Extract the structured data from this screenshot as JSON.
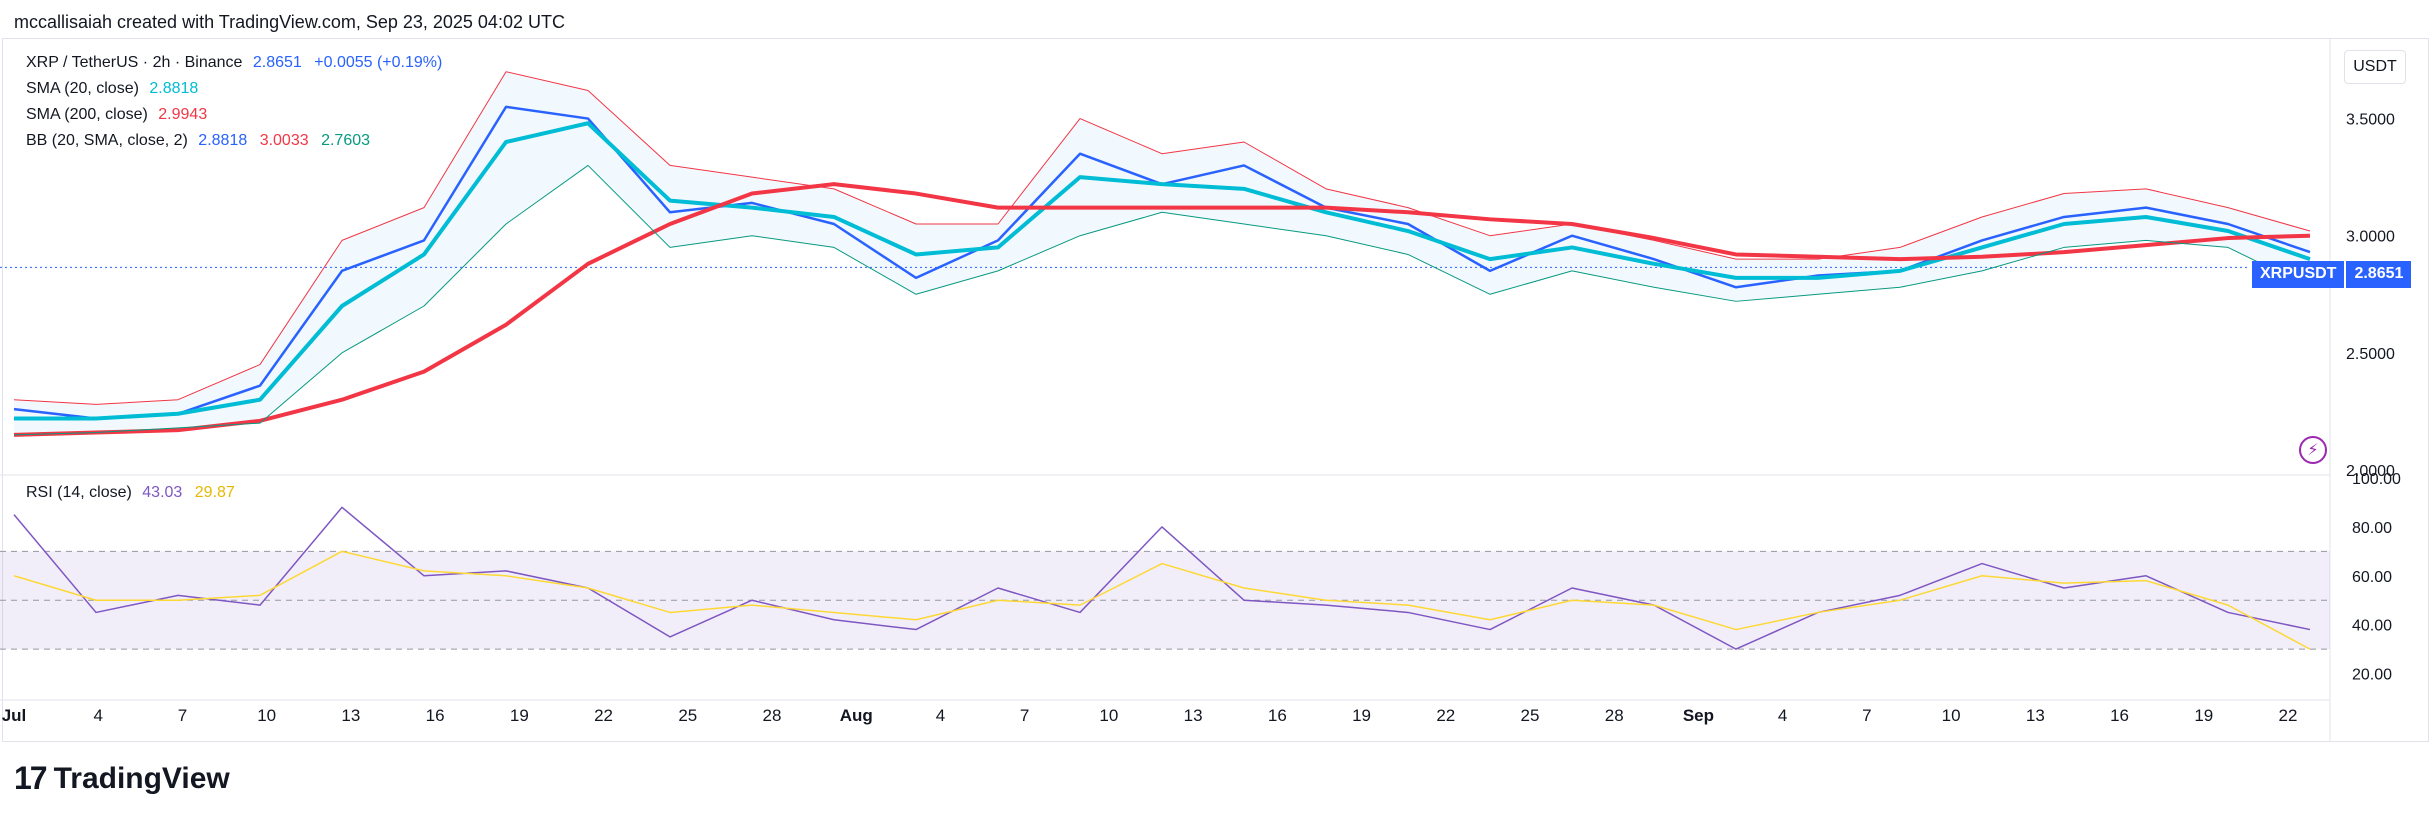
{
  "header": {
    "text": "mccallisaiah created with TradingView.com, Sep 23, 2025 04:02 UTC"
  },
  "legend": {
    "symbol": "XRP / TetherUS · 2h · Binance",
    "last": "2.8651",
    "change": "+0.0055 (+0.19%)",
    "sma20_label": "SMA (20, close)",
    "sma20_value": "2.8818",
    "sma200_label": "SMA (200, close)",
    "sma200_value": "2.9943",
    "bb_label": "BB (20, SMA, close, 2)",
    "bb_basis": "2.8818",
    "bb_upper": "3.0033",
    "bb_lower": "2.7603",
    "rsi_label": "RSI (14, close)",
    "rsi_value": "43.03",
    "rsi_ma": "29.87"
  },
  "currency_button": "USDT",
  "price_tag": {
    "symbol": "XRPUSDT",
    "value": "2.8651"
  },
  "footer": {
    "logo": "17",
    "brand": "TradingView"
  },
  "colors": {
    "price": "#2962ff",
    "sma20": "#00bcd4",
    "sma200": "#f23645",
    "bb_upper": "#f23645",
    "bb_lower": "#089981",
    "rsi": "#7e57c2",
    "rsi_ma": "#fdd835",
    "band": "#7e57c2"
  },
  "chart_data": {
    "type": "line",
    "x_tick_labels": [
      "Jul",
      "4",
      "7",
      "10",
      "13",
      "16",
      "19",
      "22",
      "25",
      "28",
      "Aug",
      "4",
      "7",
      "10",
      "13",
      "16",
      "19",
      "22",
      "25",
      "28",
      "Sep",
      "4",
      "7",
      "10",
      "13",
      "16",
      "19",
      "22"
    ],
    "price_axis": {
      "ticks": [
        "3.5000",
        "3.0000",
        "2.5000",
        "2.0000"
      ],
      "ylim": [
        2.0,
        3.75
      ]
    },
    "rsi_axis": {
      "ticks": [
        "100.00",
        "80.00",
        "60.00",
        "40.00",
        "20.00"
      ],
      "ylim": [
        10,
        100
      ],
      "band": [
        30,
        70
      ]
    },
    "x": [
      0,
      3,
      6,
      9,
      12,
      15,
      18,
      21,
      24,
      27,
      30,
      33,
      36,
      39,
      42,
      45,
      48,
      51,
      54,
      57,
      60,
      63,
      66,
      69,
      72,
      75,
      78,
      81,
      84
    ],
    "series": [
      {
        "name": "XRP / TetherUS",
        "values": [
          2.26,
          2.22,
          2.24,
          2.36,
          2.85,
          2.98,
          3.55,
          3.5,
          3.1,
          3.14,
          3.05,
          2.82,
          2.98,
          3.35,
          3.22,
          3.3,
          3.12,
          3.05,
          2.85,
          3.0,
          2.9,
          2.78,
          2.83,
          2.85,
          2.98,
          3.08,
          3.12,
          3.05,
          2.93
        ]
      },
      {
        "name": "SMA (20, close)",
        "values": [
          2.22,
          2.22,
          2.24,
          2.3,
          2.7,
          2.92,
          3.4,
          3.48,
          3.15,
          3.12,
          3.08,
          2.92,
          2.95,
          3.25,
          3.22,
          3.2,
          3.1,
          3.02,
          2.9,
          2.95,
          2.88,
          2.82,
          2.82,
          2.85,
          2.95,
          3.05,
          3.08,
          3.02,
          2.9
        ]
      },
      {
        "name": "SMA (200, close)",
        "values": [
          2.15,
          2.16,
          2.17,
          2.21,
          2.3,
          2.42,
          2.62,
          2.88,
          3.05,
          3.18,
          3.22,
          3.18,
          3.12,
          3.12,
          3.12,
          3.12,
          3.12,
          3.1,
          3.07,
          3.05,
          2.99,
          2.92,
          2.91,
          2.9,
          2.91,
          2.93,
          2.96,
          2.99,
          3.0
        ]
      },
      {
        "name": "BB upper",
        "values": [
          2.3,
          2.28,
          2.3,
          2.45,
          2.98,
          3.12,
          3.7,
          3.62,
          3.3,
          3.25,
          3.2,
          3.05,
          3.05,
          3.5,
          3.35,
          3.4,
          3.2,
          3.12,
          3.0,
          3.05,
          2.98,
          2.9,
          2.9,
          2.95,
          3.08,
          3.18,
          3.2,
          3.12,
          3.02
        ]
      },
      {
        "name": "BB lower",
        "values": [
          2.15,
          2.16,
          2.18,
          2.2,
          2.5,
          2.7,
          3.05,
          3.3,
          2.95,
          3.0,
          2.95,
          2.75,
          2.85,
          3.0,
          3.1,
          3.05,
          3.0,
          2.92,
          2.75,
          2.85,
          2.78,
          2.72,
          2.75,
          2.78,
          2.85,
          2.95,
          2.98,
          2.95,
          2.78
        ]
      },
      {
        "name": "RSI (14, close)",
        "values": [
          85,
          45,
          52,
          48,
          88,
          60,
          62,
          55,
          35,
          50,
          42,
          38,
          55,
          45,
          80,
          50,
          48,
          45,
          38,
          55,
          48,
          30,
          45,
          52,
          65,
          55,
          60,
          45,
          38
        ]
      },
      {
        "name": "RSI MA",
        "values": [
          60,
          50,
          50,
          52,
          70,
          62,
          60,
          55,
          45,
          48,
          45,
          42,
          50,
          48,
          65,
          55,
          50,
          48,
          42,
          50,
          48,
          38,
          45,
          50,
          60,
          57,
          58,
          48,
          30
        ]
      }
    ]
  }
}
